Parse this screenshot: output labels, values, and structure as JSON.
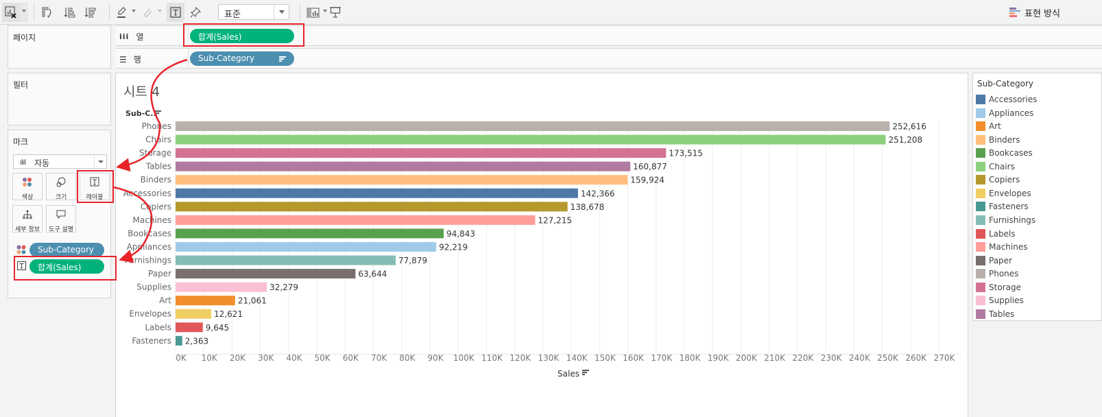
{
  "toolbar": {
    "fit_select": "표준",
    "show_me_label": "표현 방식"
  },
  "shelves": {
    "pages_title": "페이지",
    "filters_title": "필터",
    "columns_label": "열",
    "rows_label": "행",
    "columns_pill": "합계(Sales)",
    "rows_pill": "Sub-Category"
  },
  "marks": {
    "title": "마크",
    "mark_type": "자동",
    "buttons": {
      "color": "색상",
      "size": "크기",
      "label": "레이블",
      "detail": "세부 정보",
      "tooltip": "도구 설명"
    },
    "fields": [
      {
        "label": "Sub-Category",
        "encoding": "color"
      },
      {
        "label": "합계(Sales)",
        "encoding": "label"
      }
    ]
  },
  "sheet": {
    "title": "시트 4",
    "row_header": "Sub-C.."
  },
  "legend": {
    "title": "Sub-Category",
    "items": [
      {
        "label": "Accessories",
        "color": "#4e79a7"
      },
      {
        "label": "Appliances",
        "color": "#a0cbe8"
      },
      {
        "label": "Art",
        "color": "#f28e2b"
      },
      {
        "label": "Binders",
        "color": "#ffbe7d"
      },
      {
        "label": "Bookcases",
        "color": "#59a14f"
      },
      {
        "label": "Chairs",
        "color": "#8cd17d"
      },
      {
        "label": "Copiers",
        "color": "#b6992d"
      },
      {
        "label": "Envelopes",
        "color": "#f1ce63"
      },
      {
        "label": "Fasteners",
        "color": "#499894"
      },
      {
        "label": "Furnishings",
        "color": "#86bcb6"
      },
      {
        "label": "Labels",
        "color": "#e15759"
      },
      {
        "label": "Machines",
        "color": "#ff9d9a"
      },
      {
        "label": "Paper",
        "color": "#79706e"
      },
      {
        "label": "Phones",
        "color": "#bab0ac"
      },
      {
        "label": "Storage",
        "color": "#d37295"
      },
      {
        "label": "Supplies",
        "color": "#fabfd2"
      },
      {
        "label": "Tables",
        "color": "#b07aa1"
      }
    ]
  },
  "chart_data": {
    "type": "bar",
    "orientation": "horizontal",
    "title": "시트 4",
    "xlabel": "Sales",
    "ylabel": "Sub-C..",
    "xlim": [
      0,
      270000
    ],
    "grid": true,
    "x_ticks": [
      "0K",
      "10K",
      "20K",
      "30K",
      "40K",
      "50K",
      "60K",
      "70K",
      "80K",
      "90K",
      "100K",
      "110K",
      "120K",
      "130K",
      "140K",
      "150K",
      "160K",
      "170K",
      "180K",
      "190K",
      "200K",
      "210K",
      "220K",
      "230K",
      "240K",
      "250K",
      "260K",
      "270K"
    ],
    "categories": [
      "Phones",
      "Chairs",
      "Storage",
      "Tables",
      "Binders",
      "Accessories",
      "Copiers",
      "Machines",
      "Bookcases",
      "Appliances",
      "Furnishings",
      "Paper",
      "Supplies",
      "Art",
      "Envelopes",
      "Labels",
      "Fasteners"
    ],
    "values": [
      252616,
      251208,
      173515,
      160877,
      159924,
      142366,
      138678,
      127215,
      94843,
      92219,
      77879,
      63644,
      32279,
      21061,
      12621,
      9645,
      2363
    ],
    "value_labels": [
      "252,616",
      "251,208",
      "173,515",
      "160,877",
      "159,924",
      "142,366",
      "138,678",
      "127,215",
      "94,843",
      "92,219",
      "77,879",
      "63,644",
      "32,279",
      "21,061",
      "12,621",
      "9,645",
      "2,363"
    ],
    "colors": [
      "#bab0ac",
      "#8cd17d",
      "#d37295",
      "#b07aa1",
      "#ffbe7d",
      "#4e79a7",
      "#b6992d",
      "#ff9d9a",
      "#59a14f",
      "#a0cbe8",
      "#86bcb6",
      "#79706e",
      "#fabfd2",
      "#f28e2b",
      "#f1ce63",
      "#e15759",
      "#499894"
    ],
    "legend_position": "right"
  }
}
